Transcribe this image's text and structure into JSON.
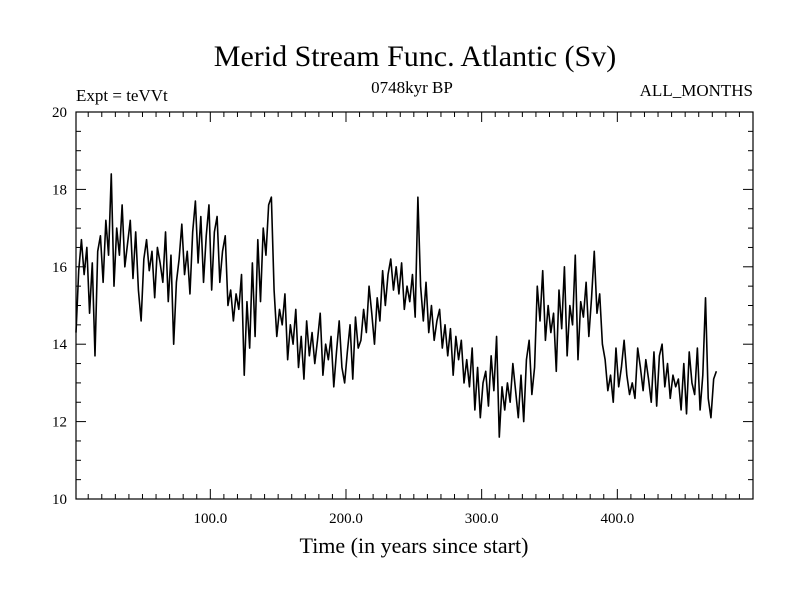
{
  "chart_data": {
    "type": "line",
    "title": "Merid Stream Func. Atlantic (Sv)",
    "subtitle_left": "Expt = teVVt",
    "subtitle_center": "0748kyr BP",
    "subtitle_right": "ALL_MONTHS",
    "xlabel": "Time (in years since start)",
    "ylabel": "",
    "xlim": [
      1,
      500
    ],
    "ylim": [
      10,
      20
    ],
    "x_ticks": [
      100,
      200,
      300,
      400
    ],
    "x_tick_labels": [
      "100.0",
      "200.0",
      "300.0",
      "400.0"
    ],
    "y_ticks": [
      10,
      12,
      14,
      16,
      18,
      20
    ],
    "y_tick_labels": [
      "10",
      "12",
      "14",
      "16",
      "18",
      "20"
    ],
    "grid": false,
    "line_color": "#000000",
    "series": [
      {
        "x_start": 1,
        "x_step": 2,
        "values": [
          14.3,
          15.9,
          16.7,
          15.8,
          16.5,
          14.8,
          16.1,
          13.7,
          16.4,
          16.8,
          15.6,
          17.2,
          16.3,
          18.4,
          15.5,
          17.0,
          16.3,
          17.6,
          16.0,
          16.6,
          17.2,
          15.7,
          16.9,
          15.4,
          14.6,
          16.2,
          16.7,
          15.9,
          16.4,
          15.2,
          16.5,
          16.1,
          15.6,
          16.9,
          15.1,
          16.3,
          14.0,
          15.6,
          16.2,
          17.1,
          15.8,
          16.4,
          15.3,
          16.9,
          17.7,
          16.1,
          17.3,
          15.6,
          16.8,
          17.6,
          15.4,
          16.9,
          17.3,
          15.6,
          16.4,
          16.8,
          15.0,
          15.4,
          14.6,
          15.3,
          14.9,
          15.8,
          13.2,
          15.1,
          13.9,
          16.1,
          14.2,
          16.7,
          15.1,
          17.0,
          16.3,
          17.6,
          17.8,
          15.4,
          14.2,
          14.9,
          14.5,
          15.3,
          13.6,
          14.5,
          14.0,
          14.9,
          13.4,
          14.2,
          13.1,
          14.6,
          13.7,
          14.3,
          13.5,
          14.1,
          14.8,
          13.2,
          14.0,
          13.6,
          14.2,
          12.9,
          13.8,
          14.6,
          13.4,
          13.0,
          13.8,
          14.5,
          13.1,
          14.7,
          13.9,
          14.1,
          14.9,
          14.3,
          15.5,
          14.8,
          14.0,
          15.2,
          14.6,
          15.9,
          15.0,
          15.8,
          16.2,
          15.4,
          16.0,
          15.3,
          16.1,
          14.9,
          15.5,
          15.1,
          15.8,
          14.7,
          17.8,
          15.5,
          14.6,
          15.6,
          14.3,
          15.0,
          14.1,
          14.6,
          14.9,
          13.9,
          14.5,
          13.7,
          14.4,
          13.2,
          14.2,
          13.6,
          14.1,
          13.0,
          13.6,
          12.9,
          13.9,
          12.3,
          13.4,
          12.1,
          13.0,
          13.3,
          12.4,
          13.7,
          12.8,
          14.2,
          11.6,
          12.9,
          12.3,
          13.0,
          12.5,
          13.5,
          12.8,
          12.1,
          13.2,
          12.0,
          13.6,
          14.1,
          12.7,
          13.4,
          15.5,
          14.6,
          15.9,
          14.1,
          15.0,
          14.3,
          14.8,
          13.3,
          15.4,
          14.4,
          16.0,
          13.7,
          15.0,
          14.5,
          16.3,
          13.6,
          15.1,
          14.7,
          15.6,
          14.2,
          15.2,
          16.4,
          14.8,
          15.3,
          14.0,
          13.6,
          12.8,
          13.2,
          12.5,
          13.9,
          12.9,
          13.4,
          14.1,
          13.2,
          12.7,
          13.0,
          12.6,
          13.9,
          13.4,
          12.8,
          13.6,
          13.1,
          12.5,
          13.8,
          12.4,
          13.7,
          14.0,
          12.9,
          13.5,
          12.6,
          13.2,
          12.9,
          13.1,
          12.3,
          13.5,
          12.2,
          13.8,
          13.0,
          12.7,
          13.9,
          12.3,
          13.2,
          15.2,
          12.6,
          12.1,
          13.1,
          13.3
        ]
      }
    ]
  }
}
